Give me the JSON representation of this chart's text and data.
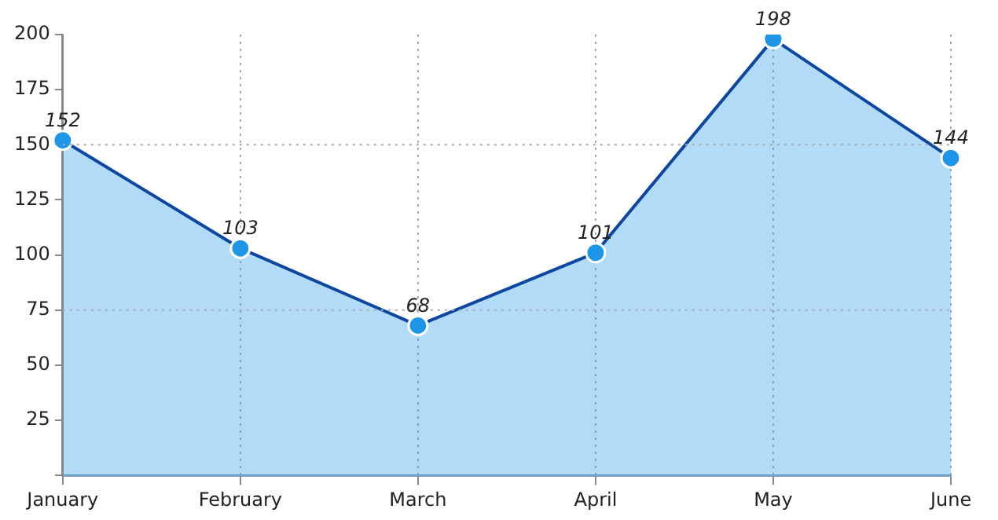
{
  "chart_data": {
    "type": "area",
    "categories": [
      "January",
      "February",
      "March",
      "April",
      "May",
      "June"
    ],
    "series": [
      {
        "color": "#0d47a1",
        "values": [
          152,
          103,
          68,
          101,
          198,
          144
        ]
      }
    ],
    "ylim": [
      0,
      200
    ],
    "yticks": [
      {
        "value": 0,
        "label": null
      },
      25,
      50,
      75,
      100,
      125,
      150,
      175,
      200
    ],
    "grid": "x",
    "marker": "circle",
    "line_style": "solid",
    "data_labels": true,
    "legend": false,
    "ref_lines": [
      {
        "axis": "y",
        "value": 75,
        "color": "#aaaaaa",
        "line_style": "dotted"
      },
      {
        "axis": "y",
        "value": 150,
        "color": "#aaaaaa",
        "line_style": "dotted"
      }
    ]
  }
}
